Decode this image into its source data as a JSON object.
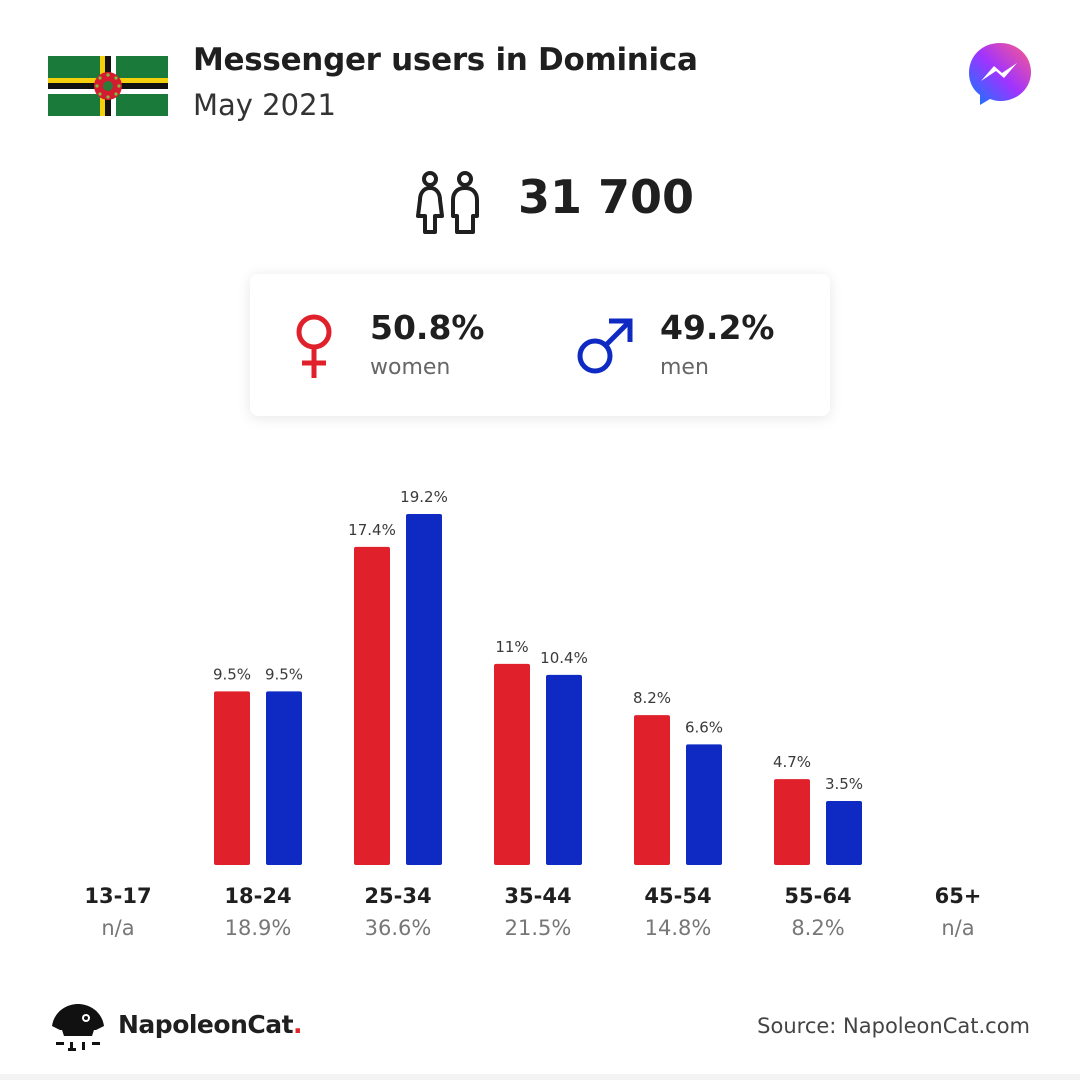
{
  "header": {
    "title": "Messenger users in Dominica",
    "subtitle": "May 2021",
    "flag_icon": "dominica-flag-icon",
    "app_icon": "messenger-icon"
  },
  "total": {
    "value": "31 700",
    "icon": "people-icon"
  },
  "gender": {
    "women": {
      "pct": "50.8%",
      "label": "women",
      "icon": "female-symbol-icon"
    },
    "men": {
      "pct": "49.2%",
      "label": "men",
      "icon": "male-symbol-icon"
    }
  },
  "colors": {
    "women": "#e0212b",
    "men": "#0f2ac3",
    "flag_green": "#1a7a3a"
  },
  "chart_data": {
    "type": "bar",
    "categories": [
      "13-17",
      "18-24",
      "25-34",
      "35-44",
      "45-54",
      "55-64",
      "65+"
    ],
    "category_shares": [
      "n/a",
      "18.9%",
      "36.6%",
      "21.5%",
      "14.8%",
      "8.2%",
      "n/a"
    ],
    "series": [
      {
        "name": "women",
        "values": [
          null,
          9.5,
          17.4,
          11,
          8.2,
          4.7,
          null
        ],
        "labels": [
          "",
          "9.5%",
          "17.4%",
          "11%",
          "8.2%",
          "4.7%",
          ""
        ]
      },
      {
        "name": "men",
        "values": [
          null,
          9.5,
          19.2,
          10.4,
          6.6,
          3.5,
          null
        ],
        "labels": [
          "",
          "9.5%",
          "19.2%",
          "10.4%",
          "6.6%",
          "3.5%",
          ""
        ]
      }
    ],
    "ylim": [
      0,
      19.2
    ],
    "grid": false
  },
  "footer": {
    "brand": "NapoleonCat",
    "brand_dot": ".",
    "source": "Source: NapoleonCat.com",
    "logo_icon": "napoleoncat-logo-icon"
  }
}
